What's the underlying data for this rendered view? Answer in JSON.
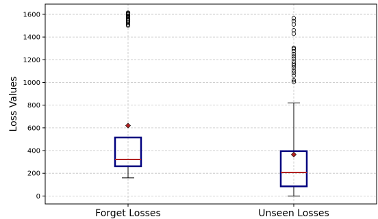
{
  "chart_data": {
    "type": "box",
    "title": "",
    "xlabel": "",
    "ylabel": "Loss Values",
    "ylim": [
      -70,
      1690
    ],
    "yticks": [
      0,
      200,
      400,
      600,
      800,
      1000,
      1200,
      1400,
      1600
    ],
    "grid": true,
    "categories": [
      "Forget Losses",
      "Unseen Losses"
    ],
    "boxes": [
      {
        "category": "Forget Losses",
        "whisker_low": 160,
        "q1": 262,
        "median": 322,
        "q3": 515,
        "whisker_high": 515,
        "mean": 620,
        "outliers": [
          1500,
          1510,
          1525,
          1535,
          1545,
          1555,
          1565,
          1575,
          1580,
          1590,
          1600,
          1605,
          1610,
          1615
        ]
      },
      {
        "category": "Unseen Losses",
        "whisker_low": 0,
        "q1": 85,
        "median": 207,
        "q3": 395,
        "whisker_high": 820,
        "mean": 365,
        "outliers": [
          1005,
          1020,
          1060,
          1085,
          1105,
          1130,
          1150,
          1165,
          1185,
          1210,
          1230,
          1250,
          1275,
          1295,
          1305,
          1430,
          1460,
          1510,
          1540,
          1565
        ]
      }
    ],
    "colors": {
      "box": "#00007f",
      "median": "#b22222",
      "whisker": "#000000",
      "mean_marker": "#b22222",
      "grid": "#c0c0c0"
    }
  }
}
